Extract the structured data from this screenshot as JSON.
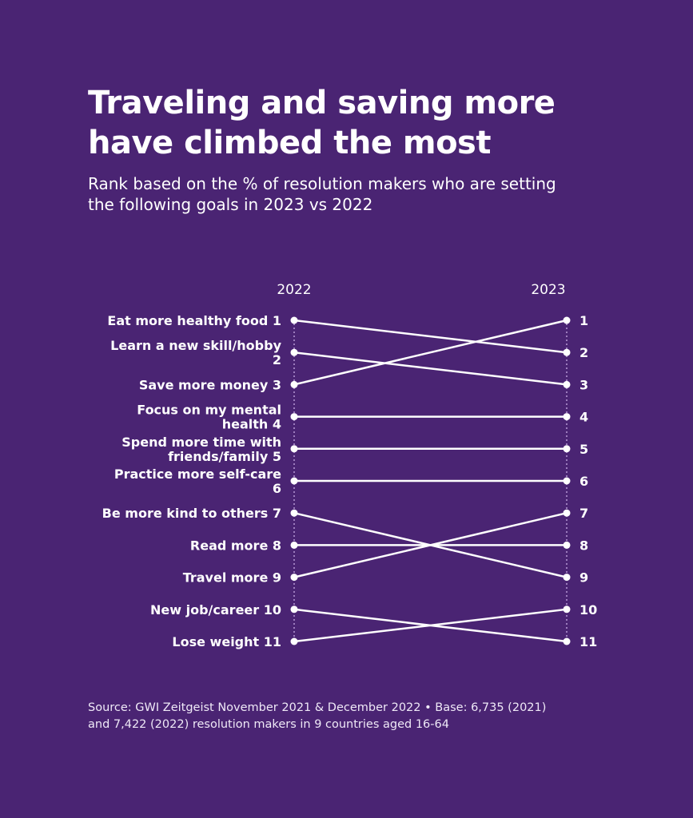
{
  "title_line1": "Traveling and saving more",
  "title_line2": "have climbed the most",
  "subtitle_line1": "Rank based on the % of resolution makers who are setting",
  "subtitle_line2": "the following goals in 2023 vs 2022",
  "source_line1": "Source: GWI Zeitgeist November 2021 & December 2022 • Base: 6,735 (2021)",
  "source_line2": "and 7,422 (2022) resolution makers in 9 countries aged 16-64",
  "colors": {
    "background": "#4a2473",
    "line": "#ffffff",
    "axis": "#b89ad6"
  },
  "chart_data": {
    "type": "slope",
    "title": "Traveling and saving more have climbed the most",
    "left_year": "2022",
    "right_year": "2023",
    "items": [
      {
        "label": "Eat more healthy food 1",
        "rank_2022": 1,
        "rank_2023": 2
      },
      {
        "label": "Learn a new skill/hobby 2",
        "rank_2022": 2,
        "rank_2023": 3
      },
      {
        "label": "Save more money 3",
        "rank_2022": 3,
        "rank_2023": 1
      },
      {
        "label": "Focus on my mental health 4",
        "rank_2022": 4,
        "rank_2023": 4
      },
      {
        "label": "Spend more time with friends/family 5",
        "rank_2022": 5,
        "rank_2023": 5
      },
      {
        "label": "Practice more self-care 6",
        "rank_2022": 6,
        "rank_2023": 6
      },
      {
        "label": "Be more kind to others 7",
        "rank_2022": 7,
        "rank_2023": 9
      },
      {
        "label": "Read more 8",
        "rank_2022": 8,
        "rank_2023": 8
      },
      {
        "label": "Travel more 9",
        "rank_2022": 9,
        "rank_2023": 7
      },
      {
        "label": "New job/career 10",
        "rank_2022": 10,
        "rank_2023": 11
      },
      {
        "label": "Lose weight 11",
        "rank_2022": 11,
        "rank_2023": 10
      }
    ],
    "right_ranks": [
      "1",
      "2",
      "3",
      "4",
      "5",
      "6",
      "7",
      "8",
      "9",
      "10",
      "11"
    ]
  }
}
